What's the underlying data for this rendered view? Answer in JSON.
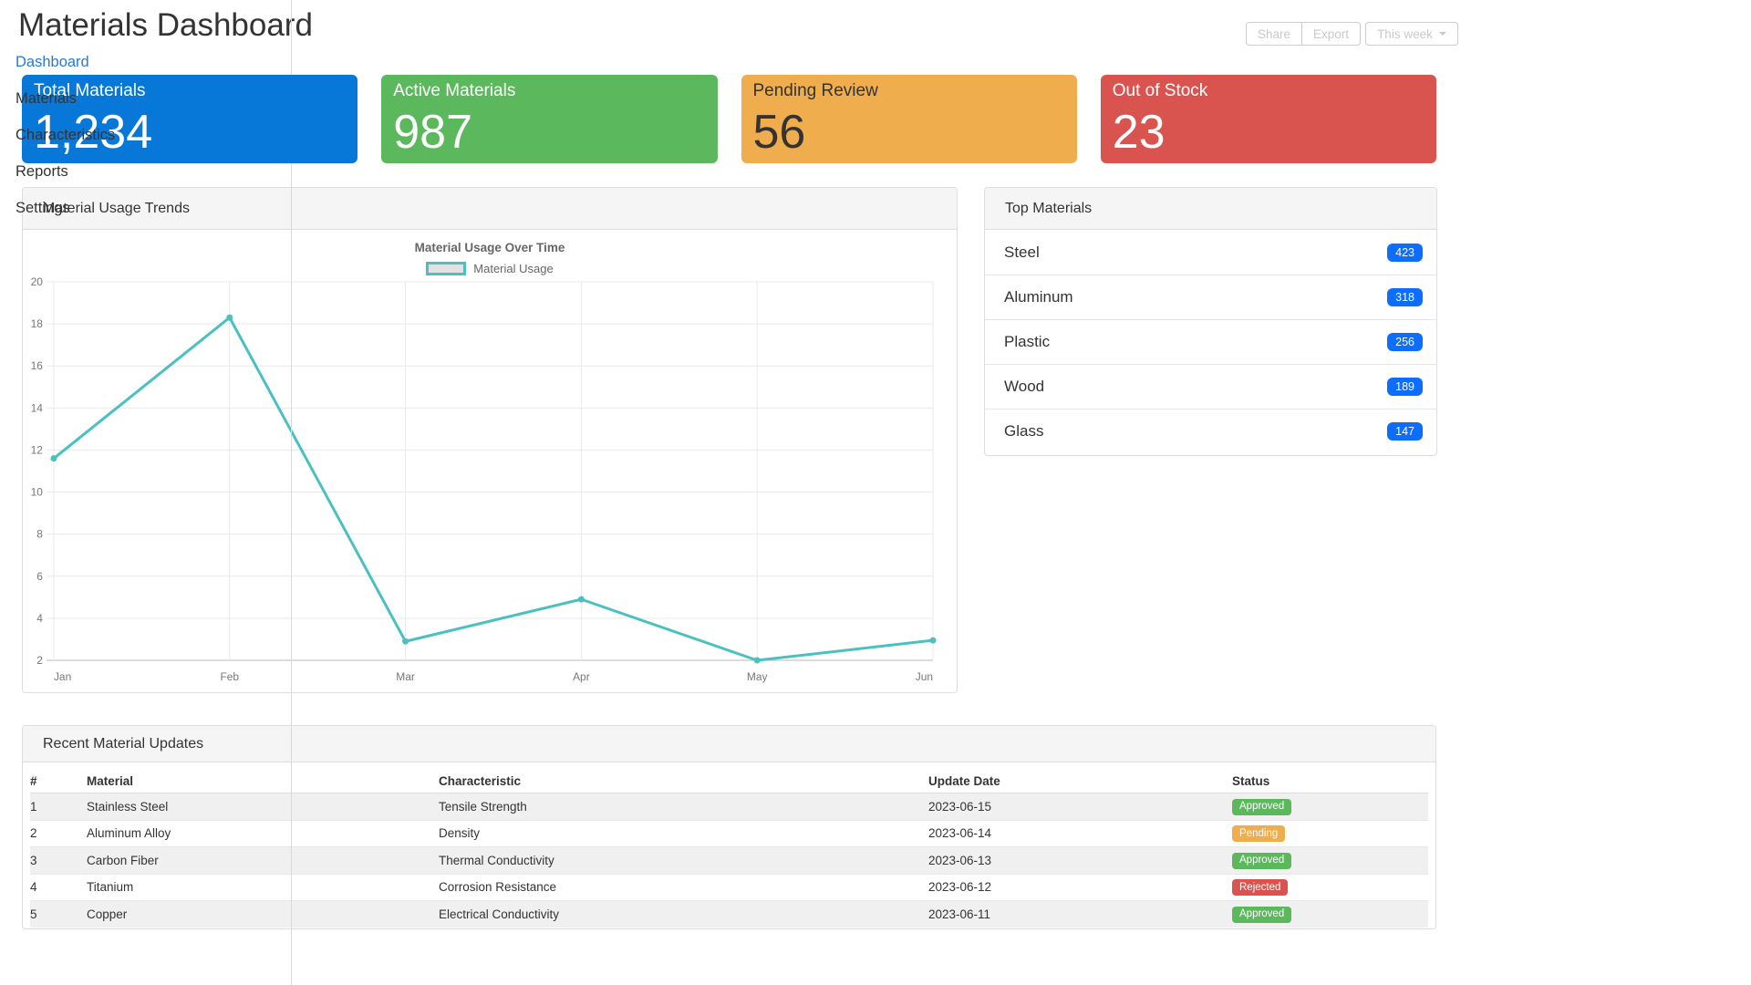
{
  "page": {
    "title": "Materials Dashboard"
  },
  "toolbar": {
    "share_label": "Share",
    "export_label": "Export",
    "period_label": "This week",
    "caret_icon": "caret-down"
  },
  "sidebar": {
    "items": [
      {
        "label": "Dashboard",
        "active": true
      },
      {
        "label": "Materials",
        "active": false
      },
      {
        "label": "Characteristics",
        "active": false
      },
      {
        "label": "Reports",
        "active": false
      },
      {
        "label": "Settings",
        "active": false
      }
    ],
    "active_color": "#2a76dd"
  },
  "stats": [
    {
      "label": "Total Materials",
      "value": "1,234",
      "color": "#0878d8",
      "text_color": "#ffffff"
    },
    {
      "label": "Active Materials",
      "value": "987",
      "color": "#5cb85c",
      "text_color": "#ffffff"
    },
    {
      "label": "Pending Review",
      "value": "56",
      "color": "#f0ad4e",
      "text_color": "#333333"
    },
    {
      "label": "Out of Stock",
      "value": "23",
      "color": "#d9534f",
      "text_color": "#ffffff"
    }
  ],
  "usage_panel": {
    "title": "Material Usage Trends"
  },
  "chart_data": {
    "type": "line",
    "title": "Material Usage Over Time",
    "x": [
      "Jan",
      "Feb",
      "Mar",
      "Apr",
      "May",
      "Jun"
    ],
    "series": [
      {
        "name": "Material Usage",
        "values": [
          11.6,
          18.3,
          2.9,
          4.9,
          2.0,
          2.95
        ],
        "color": "#4bc0c0"
      }
    ],
    "ylim": [
      2,
      20
    ],
    "yticks": [
      20,
      18,
      16,
      14,
      12,
      10,
      8,
      6,
      4,
      2
    ],
    "grid": true,
    "legend_position": "top",
    "axis_text_color": "#777777",
    "gridline_color": "#e9e9e9"
  },
  "top_materials": {
    "title": "Top Materials",
    "badge_color": "#0d6efd",
    "items": [
      {
        "name": "Steel",
        "count": "423"
      },
      {
        "name": "Aluminum",
        "count": "318"
      },
      {
        "name": "Plastic",
        "count": "256"
      },
      {
        "name": "Wood",
        "count": "189"
      },
      {
        "name": "Glass",
        "count": "147"
      }
    ]
  },
  "updates": {
    "title": "Recent Material Updates",
    "columns": [
      "#",
      "Material",
      "Characteristic",
      "Update Date",
      "Status"
    ],
    "rows": [
      {
        "num": "1",
        "material": "Stainless Steel",
        "characteristic": "Tensile Strength",
        "date": "2023-06-15",
        "status": "Approved"
      },
      {
        "num": "2",
        "material": "Aluminum Alloy",
        "characteristic": "Density",
        "date": "2023-06-14",
        "status": "Pending"
      },
      {
        "num": "3",
        "material": "Carbon Fiber",
        "characteristic": "Thermal Conductivity",
        "date": "2023-06-13",
        "status": "Approved"
      },
      {
        "num": "4",
        "material": "Titanium",
        "characteristic": "Corrosion Resistance",
        "date": "2023-06-12",
        "status": "Rejected"
      },
      {
        "num": "5",
        "material": "Copper",
        "characteristic": "Electrical Conductivity",
        "date": "2023-06-11",
        "status": "Approved"
      }
    ],
    "status_colors": {
      "Approved": "#5cb85c",
      "Pending": "#f0ad4e",
      "Rejected": "#d9534f"
    }
  }
}
